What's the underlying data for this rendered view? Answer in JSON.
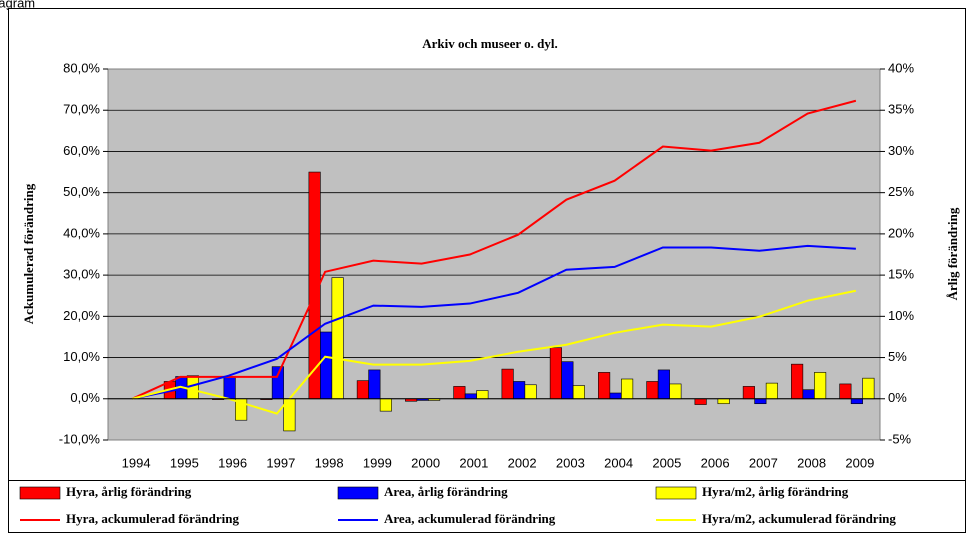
{
  "header_label": "Diagram",
  "chart_data": {
    "type": "combo",
    "title": "Arkiv och museer o. dyl.",
    "y_label": "Ackumulerad förändring",
    "y2_label": "Årlig förändring",
    "categories": [
      "1994",
      "1995",
      "1996",
      "1997",
      "1998",
      "1999",
      "2000",
      "2001",
      "2002",
      "2003",
      "2004",
      "2005",
      "2006",
      "2007",
      "2008",
      "2009"
    ],
    "ylim": [
      -10,
      80
    ],
    "yticks": [
      {
        "value": -10,
        "label": "-10,0%"
      },
      {
        "value": 0,
        "label": "0,0%"
      },
      {
        "value": 10,
        "label": "10,0%"
      },
      {
        "value": 20,
        "label": "20,0%"
      },
      {
        "value": 30,
        "label": "30,0%"
      },
      {
        "value": 40,
        "label": "40,0%"
      },
      {
        "value": 50,
        "label": "50,0%"
      },
      {
        "value": 60,
        "label": "60,0%"
      },
      {
        "value": 70,
        "label": "70,0%"
      },
      {
        "value": 80,
        "label": "80,0%"
      }
    ],
    "y2lim": [
      -5,
      40
    ],
    "y2ticks": [
      {
        "value": -5,
        "label": "-5%"
      },
      {
        "value": 0,
        "label": "0%"
      },
      {
        "value": 5,
        "label": "5%"
      },
      {
        "value": 10,
        "label": "10%"
      },
      {
        "value": 15,
        "label": "15%"
      },
      {
        "value": 20,
        "label": "20%"
      },
      {
        "value": 25,
        "label": "25%"
      },
      {
        "value": 30,
        "label": "30%"
      },
      {
        "value": 35,
        "label": "35%"
      },
      {
        "value": 40,
        "label": "40%"
      }
    ],
    "grid": true,
    "series": [
      {
        "name": "Hyra, årlig förändring",
        "type": "bar",
        "axis": "y2",
        "color": "#ff0000",
        "values": [
          0,
          2.1,
          -0.1,
          -0.1,
          27.5,
          2.2,
          -0.3,
          1.5,
          3.6,
          6.2,
          3.2,
          2.1,
          -0.7,
          1.5,
          4.2,
          1.8
        ]
      },
      {
        "name": "Area, årlig förändring",
        "type": "bar",
        "axis": "y2",
        "color": "#0000ff",
        "values": [
          0,
          2.7,
          2.7,
          3.9,
          8.1,
          3.5,
          -0.2,
          0.6,
          2.1,
          4.5,
          0.7,
          3.5,
          0,
          -0.6,
          1.1,
          -0.6
        ]
      },
      {
        "name": "Hyra/m2, årlig förändring",
        "type": "bar",
        "axis": "y2",
        "color": "#ffff00",
        "values": [
          0,
          2.8,
          -2.6,
          -3.9,
          14.7,
          -1.5,
          -0.2,
          1.0,
          1.7,
          1.6,
          2.4,
          1.8,
          -0.6,
          1.9,
          3.2,
          2.5
        ]
      },
      {
        "name": "Hyra, ackumulerad förändring",
        "type": "line",
        "axis": "y",
        "color": "#ff0000",
        "values": [
          0,
          5.3,
          5.3,
          5.3,
          30.8,
          33.5,
          32.8,
          35,
          39.8,
          48.3,
          52.9,
          61.2,
          60.2,
          62.1,
          69.2,
          72.3
        ]
      },
      {
        "name": "Area, ackumulerad förändring",
        "type": "line",
        "axis": "y",
        "color": "#0000ff",
        "values": [
          0,
          2.4,
          5.6,
          9.7,
          18.2,
          22.6,
          22.3,
          23.1,
          25.7,
          31.3,
          32,
          36.7,
          36.7,
          35.9,
          37.1,
          36.4
        ]
      },
      {
        "name": "Hyra/m2, ackumulerad förändring",
        "type": "line",
        "axis": "y",
        "color": "#ffff00",
        "values": [
          0,
          2.9,
          0,
          -3.6,
          10.2,
          8.3,
          8.3,
          9.2,
          11.4,
          13.1,
          16,
          18,
          17.5,
          19.9,
          23.8,
          26.2
        ]
      }
    ]
  }
}
